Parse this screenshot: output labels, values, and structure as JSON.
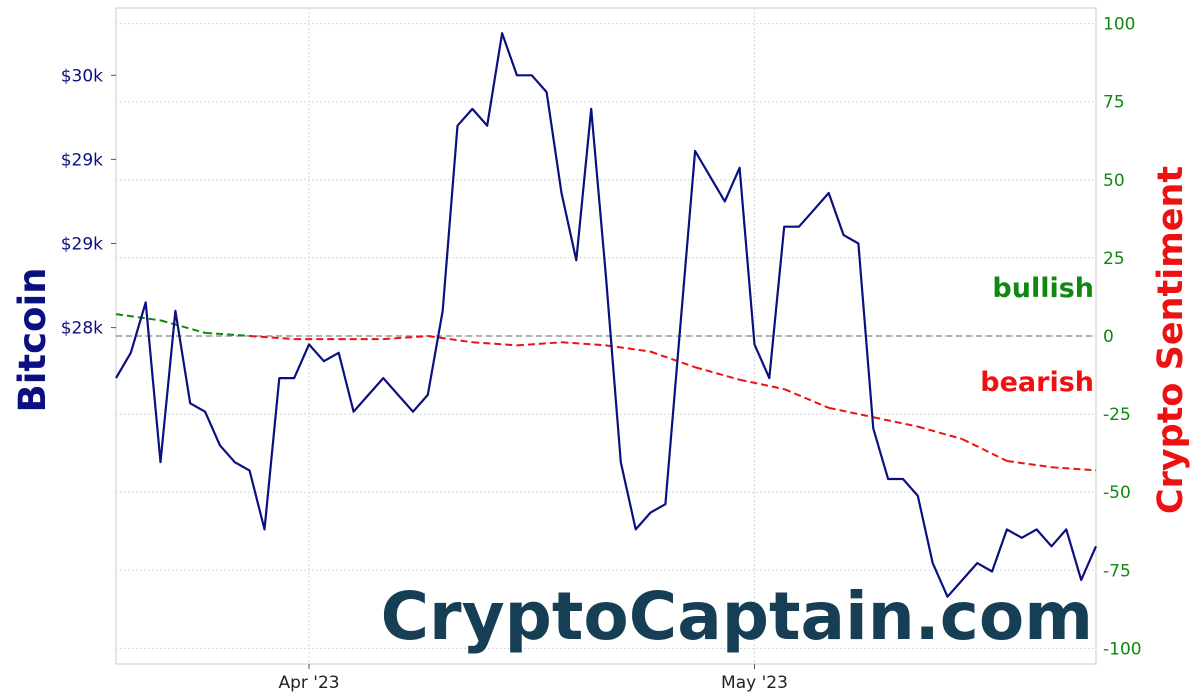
{
  "chart_data": {
    "type": "line",
    "watermark": "CryptoCaptain.com",
    "left_axis": {
      "label": "Bitcoin",
      "color": "#0b1080",
      "tick_labels": [
        "$30k",
        "$29k",
        "$29k",
        "$28k"
      ],
      "tick_values": [
        29900,
        29400,
        28900,
        28400
      ],
      "range": [
        26400,
        30300
      ]
    },
    "right_axis": {
      "label": "Crypto Sentiment",
      "label_color": "#ee1111",
      "tick_color": "#118811",
      "ticks": [
        100,
        75,
        50,
        25,
        0,
        -25,
        -50,
        -75,
        -100
      ],
      "range": [
        -105,
        105
      ]
    },
    "x_axis": {
      "ticks": [
        "Apr '23",
        "May '23"
      ],
      "start": "2023-03-19",
      "end": "2023-05-24"
    },
    "grid": true,
    "annotations": [
      {
        "text": "bullish",
        "color": "#118811"
      },
      {
        "text": "bearish",
        "color": "#ee1111"
      }
    ],
    "series": [
      {
        "name": "Bitcoin",
        "axis": "left",
        "color": "#0b1080",
        "style": "solid",
        "x": [
          "2023-03-19",
          "2023-03-20",
          "2023-03-21",
          "2023-03-22",
          "2023-03-23",
          "2023-03-24",
          "2023-03-25",
          "2023-03-26",
          "2023-03-27",
          "2023-03-28",
          "2023-03-29",
          "2023-03-30",
          "2023-03-31",
          "2023-04-01",
          "2023-04-02",
          "2023-04-03",
          "2023-04-04",
          "2023-04-05",
          "2023-04-06",
          "2023-04-07",
          "2023-04-08",
          "2023-04-09",
          "2023-04-10",
          "2023-04-11",
          "2023-04-12",
          "2023-04-13",
          "2023-04-14",
          "2023-04-15",
          "2023-04-16",
          "2023-04-17",
          "2023-04-18",
          "2023-04-19",
          "2023-04-20",
          "2023-04-21",
          "2023-04-22",
          "2023-04-23",
          "2023-04-24",
          "2023-04-25",
          "2023-04-26",
          "2023-04-27",
          "2023-04-28",
          "2023-04-29",
          "2023-04-30",
          "2023-05-01",
          "2023-05-02",
          "2023-05-03",
          "2023-05-04",
          "2023-05-05",
          "2023-05-06",
          "2023-05-07",
          "2023-05-08",
          "2023-05-09",
          "2023-05-10",
          "2023-05-11",
          "2023-05-12",
          "2023-05-13",
          "2023-05-14",
          "2023-05-15",
          "2023-05-16",
          "2023-05-17",
          "2023-05-18",
          "2023-05-19",
          "2023-05-20",
          "2023-05-21",
          "2023-05-22",
          "2023-05-23",
          "2023-05-24"
        ],
        "values": [
          28100,
          28250,
          28550,
          27600,
          28500,
          27950,
          27900,
          27700,
          27600,
          27550,
          27200,
          28100,
          28100,
          28300,
          28200,
          28250,
          27900,
          28000,
          28100,
          28000,
          27900,
          28000,
          28500,
          29600,
          29700,
          29600,
          30150,
          29900,
          29900,
          29800,
          29200,
          28800,
          29700,
          28700,
          27600,
          27200,
          27300,
          27350,
          28400,
          29450,
          29300,
          29150,
          29350,
          28300,
          28100,
          29000,
          29000,
          29100,
          29200,
          28950,
          28900,
          27800,
          27500,
          27500,
          27400,
          27000,
          26800,
          26900,
          27000,
          26950,
          27200,
          27150,
          27200,
          27100,
          27200,
          26900,
          27100
        ]
      },
      {
        "name": "Crypto Sentiment",
        "axis": "right",
        "color": "#ee1111",
        "positive_color": "#118811",
        "style": "dashed",
        "x": [
          "2023-03-19",
          "2023-03-22",
          "2023-03-25",
          "2023-03-28",
          "2023-03-31",
          "2023-04-03",
          "2023-04-06",
          "2023-04-09",
          "2023-04-12",
          "2023-04-15",
          "2023-04-18",
          "2023-04-21",
          "2023-04-24",
          "2023-04-27",
          "2023-04-30",
          "2023-05-03",
          "2023-05-06",
          "2023-05-09",
          "2023-05-12",
          "2023-05-15",
          "2023-05-18",
          "2023-05-21",
          "2023-05-24"
        ],
        "values": [
          7,
          5,
          1,
          0,
          -1,
          -1,
          -1,
          0,
          -2,
          -3,
          -2,
          -3,
          -5,
          -10,
          -14,
          -17,
          -23,
          -26,
          -29,
          -33,
          -40,
          -42,
          -43
        ]
      }
    ]
  }
}
